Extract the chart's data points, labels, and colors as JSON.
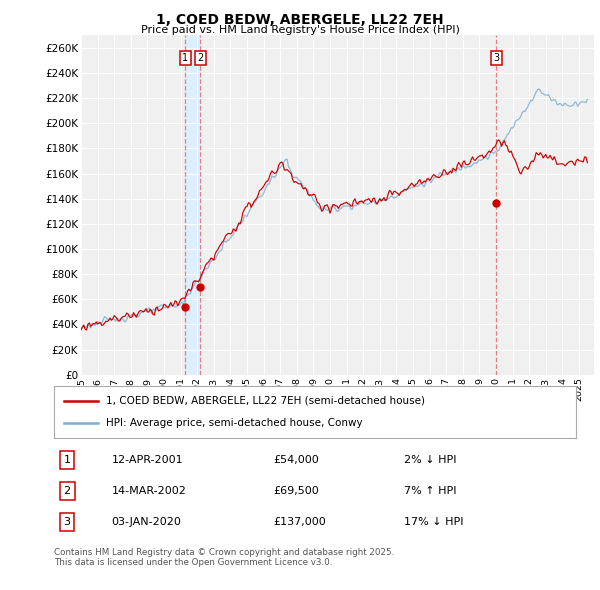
{
  "title": "1, COED BEDW, ABERGELE, LL22 7EH",
  "subtitle": "Price paid vs. HM Land Registry's House Price Index (HPI)",
  "ylim": [
    0,
    270000
  ],
  "yticks": [
    0,
    20000,
    40000,
    60000,
    80000,
    100000,
    120000,
    140000,
    160000,
    180000,
    200000,
    220000,
    240000,
    260000
  ],
  "ytick_labels": [
    "£0",
    "£20K",
    "£40K",
    "£60K",
    "£80K",
    "£100K",
    "£120K",
    "£140K",
    "£160K",
    "£180K",
    "£200K",
    "£220K",
    "£240K",
    "£260K"
  ],
  "background_color": "#ffffff",
  "plot_bg_color": "#f0f0f0",
  "grid_color": "#ffffff",
  "hpi_color": "#7bafd4",
  "price_color": "#cc0000",
  "vline_color": "#e08080",
  "shade_color": "#ddeeff",
  "sale_points": [
    {
      "date_num": 2001.27,
      "price": 54000,
      "label": "1"
    },
    {
      "date_num": 2002.19,
      "price": 69500,
      "label": "2"
    },
    {
      "date_num": 2020.01,
      "price": 137000,
      "label": "3"
    }
  ],
  "legend_entries": [
    {
      "label": "1, COED BEDW, ABERGELE, LL22 7EH (semi-detached house)",
      "color": "#cc0000"
    },
    {
      "label": "HPI: Average price, semi-detached house, Conwy",
      "color": "#7bafd4"
    }
  ],
  "table_rows": [
    {
      "num": "1",
      "date": "12-APR-2001",
      "price": "£54,000",
      "pct": "2% ↓ HPI"
    },
    {
      "num": "2",
      "date": "14-MAR-2002",
      "price": "£69,500",
      "pct": "7% ↑ HPI"
    },
    {
      "num": "3",
      "date": "03-JAN-2020",
      "price": "£137,000",
      "pct": "17% ↓ HPI"
    }
  ],
  "footer": "Contains HM Land Registry data © Crown copyright and database right 2025.\nThis data is licensed under the Open Government Licence v3.0.",
  "xmin": 1995,
  "xmax": 2025.9,
  "xticks": [
    1995,
    1996,
    1997,
    1998,
    1999,
    2000,
    2001,
    2002,
    2003,
    2004,
    2005,
    2006,
    2007,
    2008,
    2009,
    2010,
    2011,
    2012,
    2013,
    2014,
    2015,
    2016,
    2017,
    2018,
    2019,
    2020,
    2021,
    2022,
    2023,
    2024,
    2025
  ]
}
